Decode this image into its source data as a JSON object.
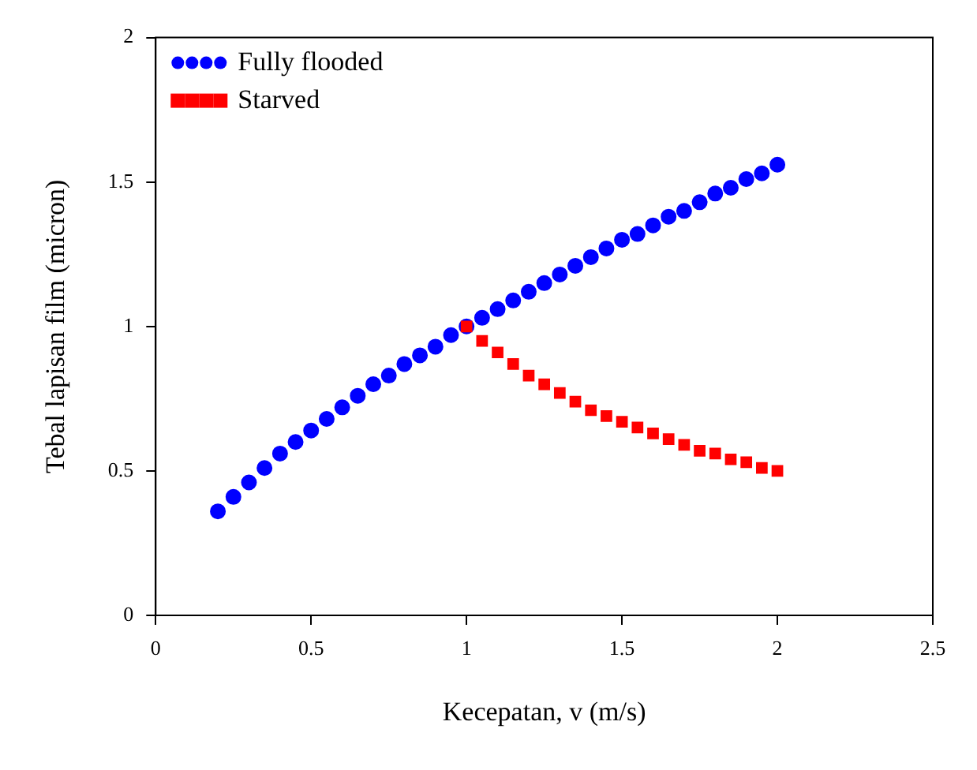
{
  "chart_data": {
    "type": "scatter",
    "xlabel": "Kecepatan, v (m/s)",
    "ylabel": "Tebal lapisan film (micron)",
    "xlim": [
      0,
      2.5
    ],
    "xticks": [
      0,
      0.5,
      1,
      1.5,
      2,
      2.5
    ],
    "ylim": [
      0,
      2
    ],
    "yticks": [
      0,
      0.5,
      1,
      1.5,
      2
    ],
    "grid": false,
    "legend": "top left",
    "series": [
      {
        "name": "Fully flooded",
        "color": "#0000ff",
        "marker": "circle",
        "x": [
          0.2,
          0.25,
          0.3,
          0.35,
          0.4,
          0.45,
          0.5,
          0.55,
          0.6,
          0.65,
          0.7,
          0.75,
          0.8,
          0.85,
          0.9,
          0.95,
          1.0,
          1.05,
          1.1,
          1.15,
          1.2,
          1.25,
          1.3,
          1.35,
          1.4,
          1.45,
          1.5,
          1.55,
          1.6,
          1.65,
          1.7,
          1.75,
          1.8,
          1.85,
          1.9,
          1.95,
          2.0
        ],
        "values": [
          0.36,
          0.41,
          0.46,
          0.51,
          0.56,
          0.6,
          0.64,
          0.68,
          0.72,
          0.76,
          0.8,
          0.83,
          0.87,
          0.9,
          0.93,
          0.97,
          1.0,
          1.03,
          1.06,
          1.09,
          1.12,
          1.15,
          1.18,
          1.21,
          1.24,
          1.27,
          1.3,
          1.32,
          1.35,
          1.38,
          1.4,
          1.43,
          1.46,
          1.48,
          1.51,
          1.53,
          1.56
        ]
      },
      {
        "name": "Starved",
        "color": "#ff0000",
        "marker": "square",
        "x": [
          1.0,
          1.05,
          1.1,
          1.15,
          1.2,
          1.25,
          1.3,
          1.35,
          1.4,
          1.45,
          1.5,
          1.55,
          1.6,
          1.65,
          1.7,
          1.75,
          1.8,
          1.85,
          1.9,
          1.95,
          2.0
        ],
        "values": [
          1.0,
          0.95,
          0.91,
          0.87,
          0.83,
          0.8,
          0.77,
          0.74,
          0.71,
          0.69,
          0.67,
          0.65,
          0.63,
          0.61,
          0.59,
          0.57,
          0.56,
          0.54,
          0.53,
          0.51,
          0.5
        ]
      }
    ]
  }
}
